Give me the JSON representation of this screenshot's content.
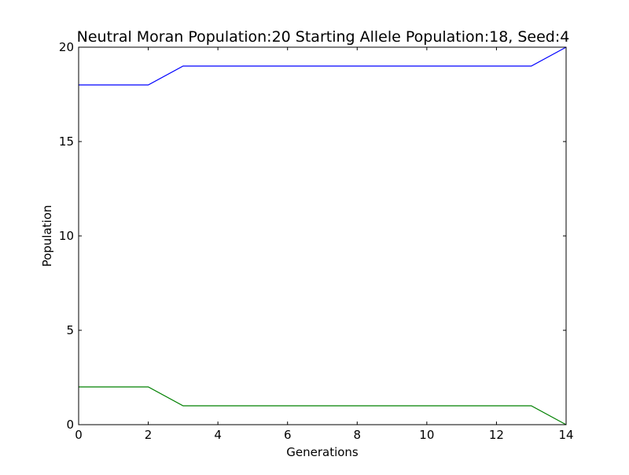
{
  "chart_data": {
    "type": "line",
    "title": "Neutral Moran Population:20 Starting Allele Population:18, Seed:4",
    "xlabel": "Generations",
    "ylabel": "Population",
    "xlim": [
      0,
      14
    ],
    "ylim": [
      0,
      20
    ],
    "grid": false,
    "legend": "none",
    "x_ticks": [
      "0",
      "2",
      "4",
      "6",
      "8",
      "10",
      "12",
      "14"
    ],
    "y_ticks": [
      "0",
      "5",
      "10",
      "15",
      "20"
    ],
    "x": [
      0,
      1,
      2,
      3,
      4,
      5,
      6,
      7,
      8,
      9,
      10,
      11,
      12,
      13,
      14
    ],
    "series": [
      {
        "color": "#0000ff",
        "values": [
          18,
          18,
          18,
          19,
          19,
          19,
          19,
          19,
          19,
          19,
          19,
          19,
          19,
          19,
          20
        ]
      },
      {
        "color": "#008000",
        "values": [
          2,
          2,
          2,
          1,
          1,
          1,
          1,
          1,
          1,
          1,
          1,
          1,
          1,
          1,
          0
        ]
      }
    ]
  }
}
